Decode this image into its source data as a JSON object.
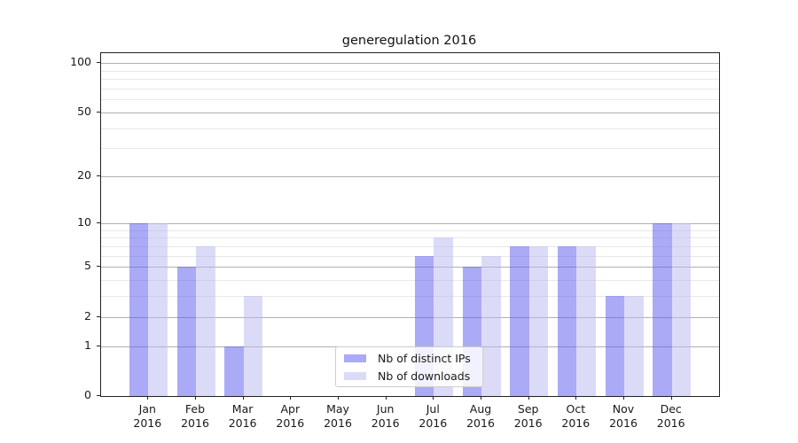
{
  "title": "generegulation 2016",
  "chart_data": {
    "type": "bar",
    "title": "generegulation 2016",
    "categories": [
      "Jan",
      "Feb",
      "Mar",
      "Apr",
      "May",
      "Jun",
      "Jul",
      "Aug",
      "Sep",
      "Oct",
      "Nov",
      "Dec"
    ],
    "category_year": "2016",
    "series": [
      {
        "name": "Nb of distinct IPs",
        "color": "rgba(85,85,238,0.5)",
        "values": [
          10,
          5,
          1,
          0,
          0,
          0,
          6,
          5,
          7,
          7,
          3,
          10
        ]
      },
      {
        "name": "Nb of downloads",
        "color": "rgba(183,183,241,0.5)",
        "values": [
          10,
          7,
          3,
          0,
          0,
          0,
          8,
          6,
          7,
          7,
          3,
          10
        ]
      }
    ],
    "xlabel": "",
    "ylabel": "",
    "yscale": "log10(1+y)",
    "ylim": [
      0,
      115
    ],
    "y_major_ticks": [
      0,
      1,
      2,
      5,
      10,
      20,
      50,
      100
    ],
    "y_minor_ticks": [
      3,
      4,
      6,
      7,
      8,
      9,
      30,
      40,
      60,
      70,
      80,
      90
    ],
    "grid": "horizontal",
    "legend_position": "bottom-center",
    "colors": {
      "bar_dark": "rgba(85,85,238,0.5)",
      "bar_light": "rgba(183,183,241,0.5)",
      "grid_major": "#b0b0b0",
      "grid_minor": "#e8e8e8",
      "spine": "#222222"
    }
  },
  "legend": {
    "entries": [
      "Nb of distinct IPs",
      "Nb of downloads"
    ]
  }
}
